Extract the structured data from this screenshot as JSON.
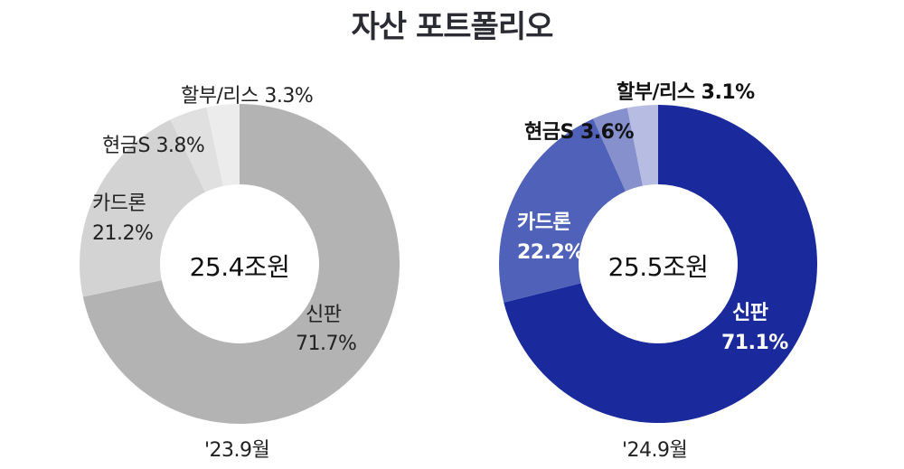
{
  "title": "자산 포트폴리오",
  "colors": {
    "left": [
      "#b3b3b3",
      "#d3d3d3",
      "#e0e0e0",
      "#ececec"
    ],
    "right": [
      "#1a2a9c",
      "#4f61b8",
      "#8590cc",
      "#b7bde2"
    ]
  },
  "charts": [
    {
      "period": "'23.9월",
      "total": "25.4조원",
      "labels": {
        "sinpan_name": "신판",
        "sinpan_pct": "71.7%",
        "cardloan_name": "카드론",
        "cardloan_pct": "21.2%",
        "cash": "현금S 3.8%",
        "lease": "할부/리스 3.3%"
      }
    },
    {
      "period": "'24.9월",
      "total": "25.5조원",
      "labels": {
        "sinpan_name": "신판",
        "sinpan_pct": "71.1%",
        "cardloan_name": "카드론",
        "cardloan_pct": "22.2%",
        "cash": "현금S 3.6%",
        "lease": "할부/리스 3.1%"
      }
    }
  ],
  "chart_data": [
    {
      "type": "pie",
      "subtype": "donut",
      "title": "자산 포트폴리오",
      "caption": "'23.9월",
      "center_label": "25.4조원",
      "categories": [
        "신판",
        "카드론",
        "현금S",
        "할부/리스"
      ],
      "values": [
        71.7,
        21.2,
        3.8,
        3.3
      ],
      "unit": "%"
    },
    {
      "type": "pie",
      "subtype": "donut",
      "title": "자산 포트폴리오",
      "caption": "'24.9월",
      "center_label": "25.5조원",
      "categories": [
        "신판",
        "카드론",
        "현금S",
        "할부/리스"
      ],
      "values": [
        71.1,
        22.2,
        3.6,
        3.1
      ],
      "unit": "%"
    }
  ]
}
